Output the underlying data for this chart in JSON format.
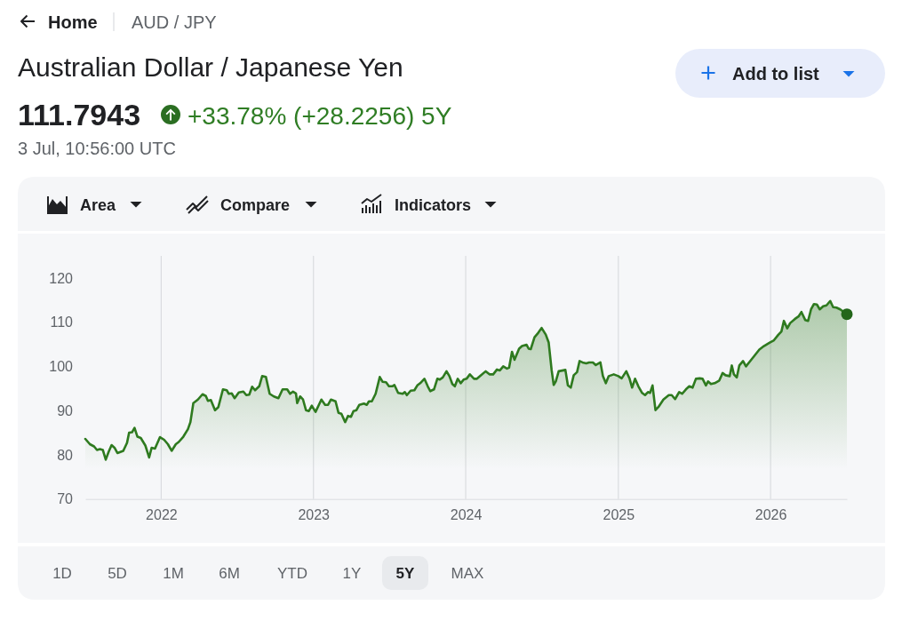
{
  "chart_data": {
    "type": "area",
    "title": "Australian Dollar / Japanese Yen",
    "annotations": [
      "Home",
      "AUD / JPY",
      "111.7943",
      "+33.78% (+28.2256) 5Y",
      "3 Jul, 10:56:00 UTC",
      "Add to list",
      "Area",
      "Compare",
      "Indicators",
      "1D",
      "5D",
      "1M",
      "6M",
      "YTD",
      "1Y",
      "5Y",
      "MAX"
    ],
    "x": [
      "2021-07-03",
      "2021-07-14",
      "2021-07-24",
      "2021-07-31",
      "2021-08-07",
      "2021-08-14",
      "2021-08-21",
      "2021-08-28",
      "2021-09-04",
      "2021-09-11",
      "2021-09-18",
      "2021-10-02",
      "2021-10-11",
      "2021-10-16",
      "2021-10-23",
      "2021-10-29",
      "2021-11-05",
      "2021-11-13",
      "2021-11-24",
      "2021-12-03",
      "2021-12-09",
      "2021-12-17",
      "2021-12-29",
      "2022-01-08",
      "2022-01-17",
      "2022-01-26",
      "2022-02-05",
      "2022-02-12",
      "2022-02-23",
      "2022-03-06",
      "2022-03-12",
      "2022-03-19",
      "2022-03-30",
      "2022-04-10",
      "2022-04-18",
      "2022-04-23",
      "2022-04-30",
      "2022-05-10",
      "2022-05-18",
      "2022-05-29",
      "2022-06-07",
      "2022-06-12",
      "2022-06-19",
      "2022-06-26",
      "2022-07-06",
      "2022-07-17",
      "2022-07-24",
      "2022-07-31",
      "2022-08-07",
      "2022-08-14",
      "2022-08-24",
      "2022-08-31",
      "2022-09-09",
      "2022-09-18",
      "2022-09-28",
      "2022-10-09",
      "2022-10-19",
      "2022-10-30",
      "2022-11-06",
      "2022-11-13",
      "2022-11-20",
      "2022-11-23",
      "2022-11-30",
      "2022-12-07",
      "2022-12-14",
      "2022-12-21",
      "2022-12-28",
      "2023-01-06",
      "2023-01-13",
      "2023-01-20",
      "2023-01-29",
      "2023-02-05",
      "2023-02-12",
      "2023-02-23",
      "2023-03-02",
      "2023-03-09",
      "2023-03-18",
      "2023-03-25",
      "2023-04-01",
      "2023-04-07",
      "2023-04-14",
      "2023-04-21",
      "2023-05-02",
      "2023-05-09",
      "2023-05-14",
      "2023-05-21",
      "2023-05-30",
      "2023-06-09",
      "2023-06-16",
      "2023-06-24",
      "2023-07-01",
      "2023-07-09",
      "2023-07-14",
      "2023-07-23",
      "2023-08-03",
      "2023-08-08",
      "2023-08-13",
      "2023-08-22",
      "2023-08-31",
      "2023-09-07",
      "2023-09-14",
      "2023-09-24",
      "2023-10-02",
      "2023-10-08",
      "2023-10-17",
      "2023-10-25",
      "2023-10-31",
      "2023-11-07",
      "2023-11-16",
      "2023-11-23",
      "2023-11-30",
      "2023-12-06",
      "2023-12-13",
      "2023-12-20",
      "2023-12-27",
      "2024-01-03",
      "2024-01-11",
      "2024-01-21",
      "2024-01-28",
      "2024-02-07",
      "2024-02-18",
      "2024-02-27",
      "2024-03-07",
      "2024-03-16",
      "2024-03-23",
      "2024-03-31",
      "2024-04-09",
      "2024-04-14",
      "2024-04-21",
      "2024-04-27",
      "2024-05-08",
      "2024-05-15",
      "2024-05-26",
      "2024-05-31",
      "2024-06-05",
      "2024-06-14",
      "2024-06-23",
      "2024-07-01",
      "2024-07-11",
      "2024-07-18",
      "2024-07-25",
      "2024-07-30",
      "2024-08-04",
      "2024-08-11",
      "2024-08-22",
      "2024-08-27",
      "2024-09-02",
      "2024-09-09",
      "2024-09-16",
      "2024-09-24",
      "2024-09-30",
      "2024-10-07",
      "2024-10-16",
      "2024-10-23",
      "2024-11-01",
      "2024-11-08",
      "2024-11-19",
      "2024-11-25",
      "2024-12-02",
      "2024-12-09",
      "2024-12-21",
      "2025-01-01",
      "2025-01-09",
      "2025-01-20",
      "2025-01-28",
      "2025-02-03",
      "2025-02-10",
      "2025-02-18",
      "2025-02-27",
      "2025-03-06",
      "2025-03-13",
      "2025-03-18",
      "2025-03-24",
      "2025-03-31",
      "2025-04-07",
      "2025-04-19",
      "2025-05-02",
      "2025-05-09",
      "2025-05-17",
      "2025-05-27",
      "2025-06-03",
      "2025-06-12",
      "2025-06-20",
      "2025-06-28",
      "2025-07-06",
      "2025-07-15",
      "2025-07-22",
      "2025-07-30",
      "2025-08-04",
      "2025-08-11",
      "2025-08-20",
      "2025-08-31",
      "2025-09-08",
      "2025-09-15",
      "2025-09-25",
      "2025-09-30",
      "2025-10-05",
      "2025-10-12",
      "2025-10-18",
      "2025-10-27",
      "2025-11-03",
      "2025-11-13",
      "2025-11-24",
      "2025-12-05",
      "2025-12-16",
      "2025-12-30",
      "2026-01-09",
      "2026-01-19",
      "2026-01-27",
      "2026-02-02",
      "2026-02-10",
      "2026-02-17",
      "2026-02-28",
      "2026-03-09",
      "2026-03-16",
      "2026-03-25",
      "2026-04-01",
      "2026-04-08",
      "2026-04-15",
      "2026-04-22",
      "2026-04-29",
      "2026-05-07",
      "2026-05-15",
      "2026-05-24",
      "2026-05-31",
      "2026-06-08",
      "2026-06-17",
      "2026-07-03"
    ],
    "series": [
      {
        "color": "#2e7a1f",
        "values": [
          83.6,
          82.4,
          81.9,
          81.1,
          81.3,
          81.1,
          78.9,
          80.7,
          82.2,
          81.6,
          80.4,
          80.9,
          82.7,
          85.0,
          85.1,
          86.1,
          84.1,
          83.8,
          82.1,
          79.4,
          81.6,
          81.4,
          84.0,
          83.4,
          82.4,
          80.9,
          82.4,
          82.9,
          84.1,
          85.8,
          87.4,
          91.7,
          92.5,
          93.7,
          93.3,
          92.2,
          92.4,
          90.1,
          90.8,
          94.8,
          94.6,
          93.8,
          93.9,
          92.8,
          94.1,
          94.3,
          93.5,
          93.6,
          95.4,
          94.6,
          95.5,
          97.8,
          97.6,
          93.8,
          93.2,
          92.8,
          94.8,
          94.8,
          93.8,
          94.3,
          93.9,
          91.7,
          93.2,
          92.5,
          90.1,
          89.9,
          91.1,
          89.7,
          91.1,
          92.5,
          91.3,
          91.3,
          92.5,
          92.1,
          89.5,
          89.3,
          87.4,
          88.8,
          88.6,
          89.9,
          90.1,
          91.3,
          91.6,
          91.3,
          92.1,
          92.1,
          93.8,
          97.6,
          96.5,
          96.4,
          95.5,
          95.5,
          95.8,
          94.0,
          93.8,
          94.2,
          93.5,
          94.5,
          94.6,
          95.7,
          96.2,
          97.2,
          95.5,
          94.4,
          94.8,
          97.2,
          97.0,
          97.5,
          98.9,
          97.8,
          96.0,
          95.5,
          97.2,
          96.2,
          97.0,
          97.2,
          98.2,
          97.2,
          97.2,
          98.0,
          98.9,
          98.2,
          98.2,
          99.3,
          99.1,
          100.0,
          99.5,
          99.7,
          103.3,
          101.5,
          104.0,
          104.6,
          104.9,
          104.0,
          103.9,
          106.6,
          107.6,
          108.7,
          107.2,
          105.4,
          99.2,
          95.8,
          96.6,
          98.9,
          99.1,
          99.2,
          95.7,
          95.2,
          98.0,
          98.7,
          101.2,
          100.9,
          100.7,
          100.9,
          100.9,
          100.3,
          100.9,
          97.8,
          96.2,
          97.8,
          98.2,
          97.8,
          97.3,
          98.9,
          97.2,
          95.2,
          97.2,
          95.5,
          94.0,
          93.5,
          94.2,
          94.0,
          95.7,
          90.1,
          90.8,
          92.5,
          93.5,
          93.5,
          92.6,
          94.2,
          93.8,
          94.8,
          95.5,
          95.2,
          97.2,
          97.3,
          97.2,
          95.7,
          96.6,
          96.0,
          96.2,
          96.8,
          98.5,
          98.0,
          97.8,
          100.2,
          98.2,
          97.5,
          100.2,
          101.2,
          100.0,
          101.2,
          102.5,
          103.8,
          104.6,
          105.4,
          105.9,
          107.1,
          107.9,
          110.3,
          108.6,
          109.8,
          110.7,
          111.3,
          112.3,
          110.5,
          110.3,
          112.9,
          114.1,
          114.0,
          112.9,
          113.6,
          113.8,
          114.8,
          113.4,
          113.3,
          112.9,
          111.8
        ]
      },
      {
        "type": "scatter",
        "color": "#23661a",
        "marker": "circle",
        "x": [
          "2026-07-03"
        ],
        "values": [
          111.8
        ]
      }
    ],
    "xlim": [
      "2021-07-03",
      "2026-07-03"
    ],
    "xticks": [
      "2022",
      "2023",
      "2024",
      "2025",
      "2026"
    ],
    "ylim": [
      70,
      125
    ],
    "yticks": [
      70,
      80,
      90,
      100,
      110,
      120
    ],
    "grid": "x"
  }
}
